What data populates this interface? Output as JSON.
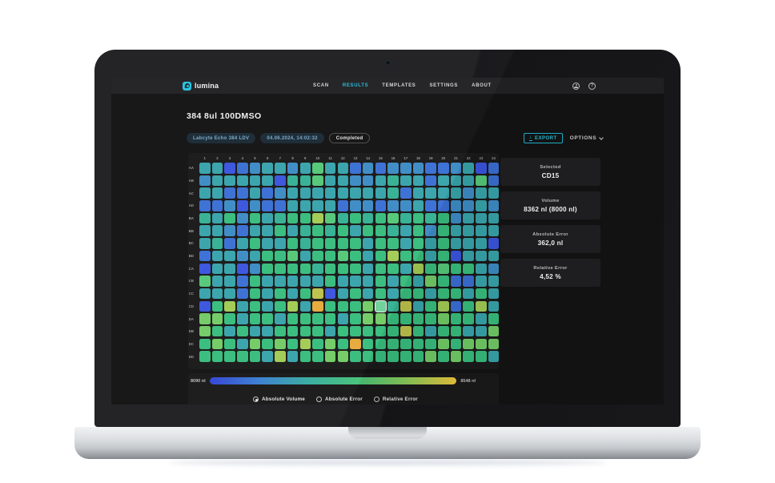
{
  "navbar": {
    "brand": "lumina",
    "items": [
      {
        "label": "SCAN",
        "active": false
      },
      {
        "label": "RESULTS",
        "active": true
      },
      {
        "label": "TEMPLATES",
        "active": false
      },
      {
        "label": "SETTINGS",
        "active": false
      },
      {
        "label": "ABOUT",
        "active": false
      }
    ]
  },
  "header": {
    "title": "384 8ul 100DMSO",
    "badges": [
      {
        "label": "Labcyte Echo 384 LDV",
        "style": "info"
      },
      {
        "label": "04.06.2024, 14:02:32",
        "style": "info"
      },
      {
        "label": "Completed",
        "style": "outline"
      }
    ],
    "export_label": "EXPORT",
    "options_label": "OPTIONS"
  },
  "details": {
    "cards": [
      {
        "label": "Selected",
        "value": "CD15"
      },
      {
        "label": "Volume",
        "value": "8362 nl (8000 nl)"
      },
      {
        "label": "Absolute Error",
        "value": "362,0 nl"
      },
      {
        "label": "Relative Error",
        "value": "4,52 %"
      }
    ]
  },
  "chart_data": {
    "type": "heatmap",
    "title": "384 8ul 100DMSO",
    "metric": "Absolute Volume",
    "unit": "nl",
    "value_range": [
      8090,
      8548
    ],
    "columns": [
      "1",
      "2",
      "3",
      "4",
      "5",
      "6",
      "7",
      "8",
      "9",
      "10",
      "11",
      "12",
      "13",
      "14",
      "15",
      "16",
      "17",
      "18",
      "19",
      "20",
      "21",
      "22",
      "23",
      "24"
    ],
    "rows": [
      "AA",
      "AB",
      "AC",
      "AD",
      "BA",
      "BB",
      "BC",
      "BD",
      "CA",
      "CB",
      "CC",
      "CD",
      "DA",
      "DB",
      "DC",
      "DD"
    ],
    "selected": {
      "row": "CD",
      "col": 15,
      "label": "CD15",
      "volume": "8362 nl (8000 nl)",
      "absolute_error": "362,0 nl",
      "relative_error": "4,52 %"
    },
    "palette": {
      "B": "#3a55dd",
      "b": "#3b6fd4",
      "c": "#3d8cc6",
      "t": "#38a3ab",
      "T": "#35b194",
      "g": "#38bd7d",
      "G": "#55c878",
      "L": "#72cb66",
      "y": "#a2cb55",
      "o": "#bcc24b",
      "O": "#e5aa3c"
    },
    "cells": [
      "ttBbcttctGttbcbcccbbctBb",
      "ctttttBTTGttcctTttbtttGb",
      "ttbbtbcttttttttTbttttctt",
      "bbcBcbbttttbccbcctbbcctc",
      "TtgcgtTggyGTgTgGTgTgcttt",
      "ttcbttgtTgTgtggTtgcgtttt",
      "tTbtgttgTggggtggtgtgtttB",
      "bttctggGtggGgtgyggtgBttt",
      "BttBcggggTgggtggtygGggtc",
      "GttbgtttttgtttgtgtLgbbtt",
      "tttbgtgtgoBtgtgtggtggtgt",
      "BgytgtgytOgggLGTotgybgyt",
      "LLgtggtggggtgLLggggLggtg",
      "LgtgttggggtgggggogtggttL",
      "gLgtLgLgygLgOggggggLgLLL",
      "gggggtytggLLggggggLgLggt"
    ]
  },
  "legend": {
    "min": "8090 nl",
    "max": "8548 nl",
    "gradient": [
      "#3445d6",
      "#3b7fd0",
      "#38aca0",
      "#47c379",
      "#8cca58",
      "#eec73e"
    ]
  },
  "controls": {
    "radios": [
      {
        "label": "Absolute Volume",
        "selected": true
      },
      {
        "label": "Absolute Error",
        "selected": false
      },
      {
        "label": "Relative Error",
        "selected": false
      }
    ]
  }
}
